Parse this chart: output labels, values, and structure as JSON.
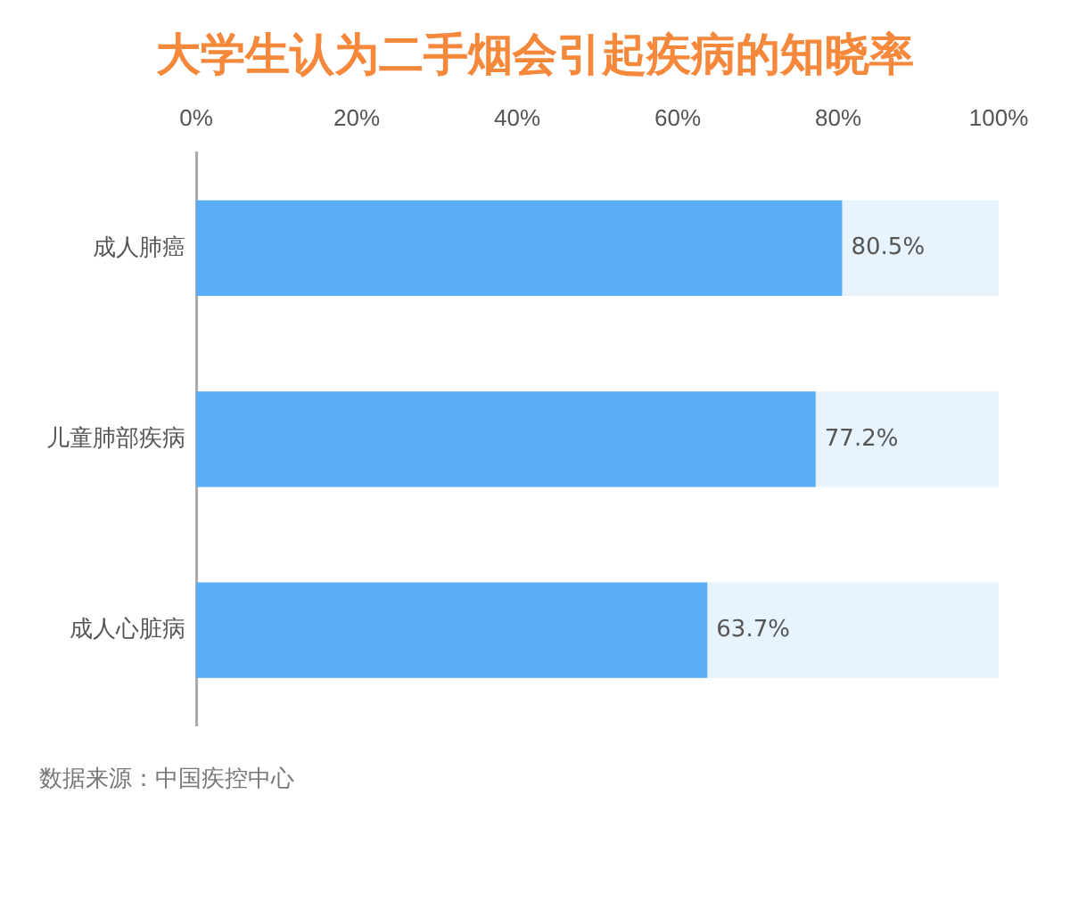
{
  "chart_data": {
    "type": "bar",
    "orientation": "horizontal",
    "stacked": true,
    "title": "大学生认为二手烟会引起疾病的知晓率",
    "categories": [
      "成人肺癌",
      "儿童肺部疾病",
      "成人心脏病"
    ],
    "series": [
      {
        "color": "#5aaef5",
        "values": [
          80.5,
          77.2,
          63.7
        ],
        "value_labels": [
          "80.5%",
          "77.2%",
          "63.7%"
        ]
      },
      {
        "color": "#e8f4fd",
        "values": [
          19.5,
          22.8,
          36.3
        ]
      }
    ],
    "xlim": [
      0,
      100
    ],
    "xticks": [
      {
        "value": 0,
        "label": "0%"
      },
      {
        "value": 20,
        "label": "20%"
      },
      {
        "value": 40,
        "label": "40%"
      },
      {
        "value": 60,
        "label": "60%"
      },
      {
        "value": 80,
        "label": "80%"
      },
      {
        "value": 100,
        "label": "100%"
      }
    ],
    "grid": false,
    "legend": false,
    "annotations": [
      "数据来源：中国疾控中心"
    ]
  }
}
